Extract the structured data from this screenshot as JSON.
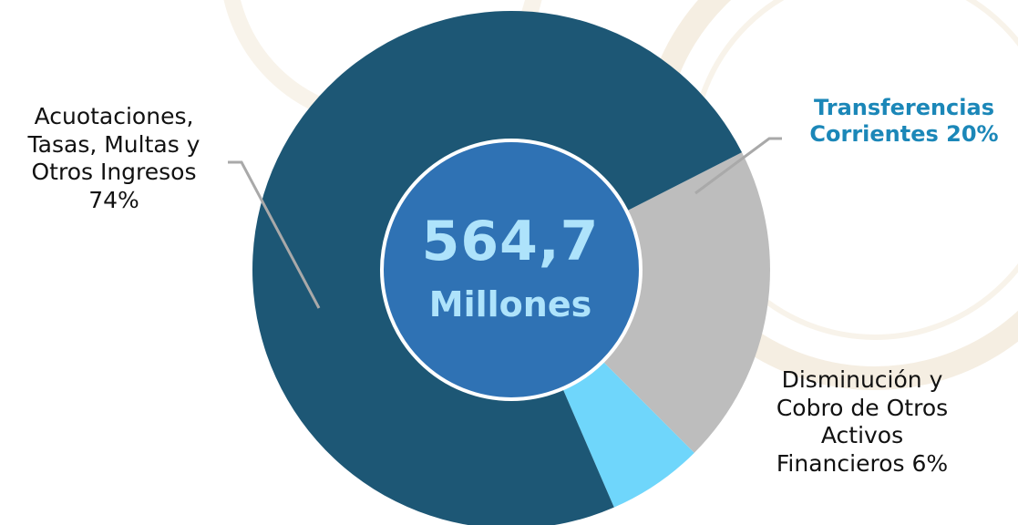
{
  "chart_data": {
    "type": "pie",
    "center_value": "564,7",
    "center_unit": "Millones",
    "slices": [
      {
        "label": "Transferencias Corrientes 20%",
        "value": 20,
        "color": "#bdbdbd",
        "label_color": "#1b87b8"
      },
      {
        "label": "Disminución y Cobro de Otros Activos Financieros 6%",
        "value": 6,
        "color": "#6fd6fb",
        "label_color": "#111111"
      },
      {
        "label": "Acuotaciones, Tasas, Multas y Otros Ingresos 74%",
        "value": 74,
        "color": "#1d5775",
        "label_color": "#111111"
      }
    ]
  },
  "colors": {
    "center_fill": "#2f72b4",
    "center_text": "#aee3fb",
    "leader_line": "#a9a9a9",
    "watermark": "#f6efe2"
  },
  "labels": {
    "acuotaciones": "Acuotaciones,\nTasas, Multas y\nOtros Ingresos\n74%",
    "transferencias": "Transferencias\nCorrientes 20%",
    "disminucion": "Disminución y\nCobro de Otros\nActivos\nFinancieros 6%"
  }
}
